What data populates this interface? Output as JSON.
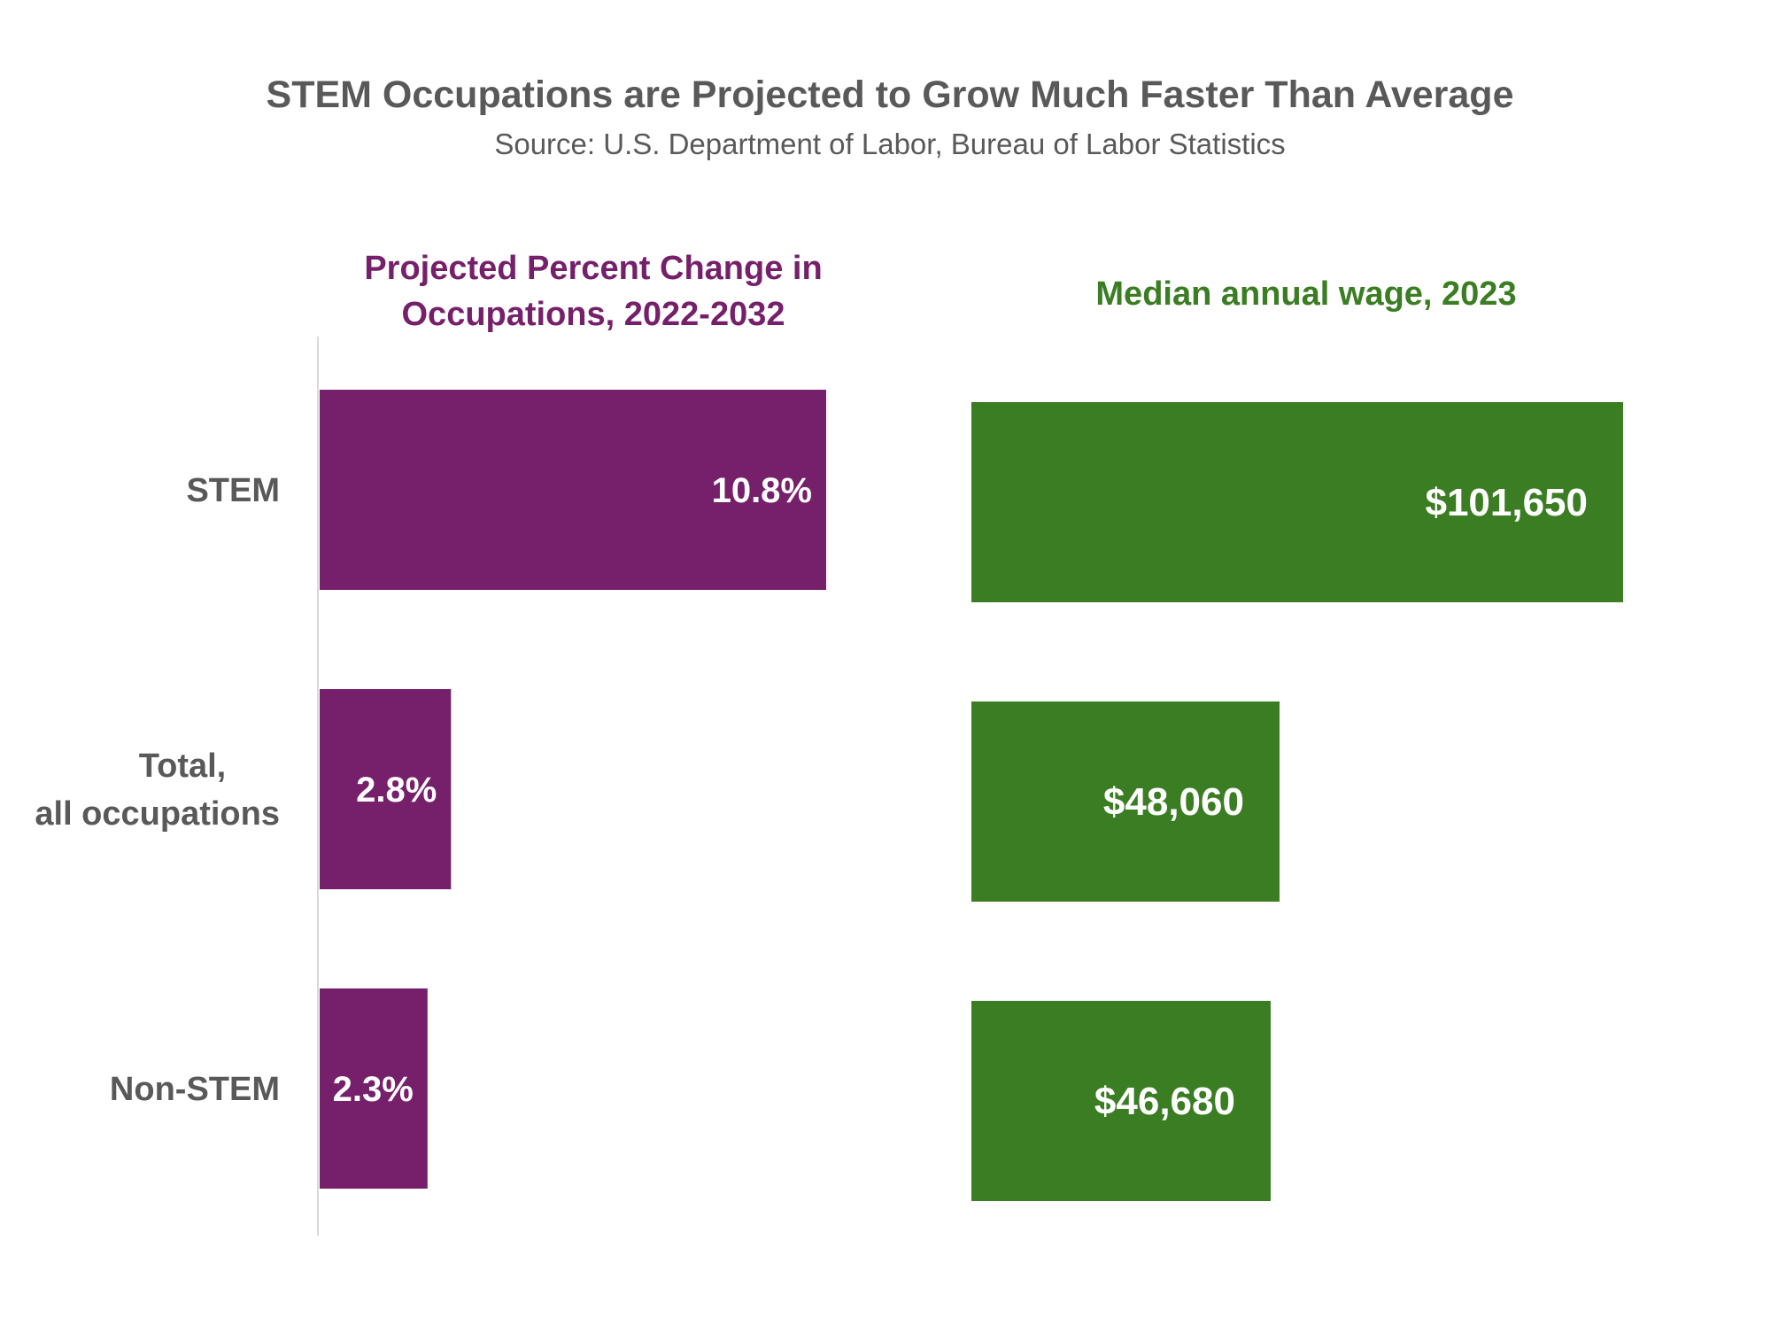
{
  "title": "STEM Occupations are Projected to Grow Much Faster Than Average",
  "subtitle": "Source: U.S. Department of Labor, Bureau of Labor Statistics",
  "colors": {
    "title": "#595959",
    "subtitle": "#595959",
    "category_label": "#595959",
    "axis_line": "#d9d9d9",
    "bar_label": "#ffffff",
    "panel_1": "#76206b",
    "panel_2": "#3a7d22"
  },
  "chart_data": [
    {
      "type": "bar",
      "orientation": "horizontal",
      "title": "Projected Percent Change in Occupations, 2022-2032",
      "categories": [
        "STEM",
        "Total, all occupations",
        "Non-STEM"
      ],
      "values": [
        10.8,
        2.8,
        2.3
      ],
      "data_labels": [
        "10.8%",
        "2.8%",
        "2.3%"
      ],
      "unit": "%",
      "xlim": [
        0,
        14.5
      ],
      "grid": false,
      "legend": "none"
    },
    {
      "type": "bar",
      "orientation": "horizontal",
      "title": "Median annual wage, 2023",
      "categories": [
        "STEM",
        "Total, all occupations",
        "Non-STEM"
      ],
      "values": [
        101650,
        48060,
        46680
      ],
      "data_labels": [
        "$101,650",
        "$48,060",
        "$46,680"
      ],
      "unit": "$",
      "xlim": [
        0,
        110000
      ],
      "grid": false,
      "legend": "none"
    }
  ]
}
